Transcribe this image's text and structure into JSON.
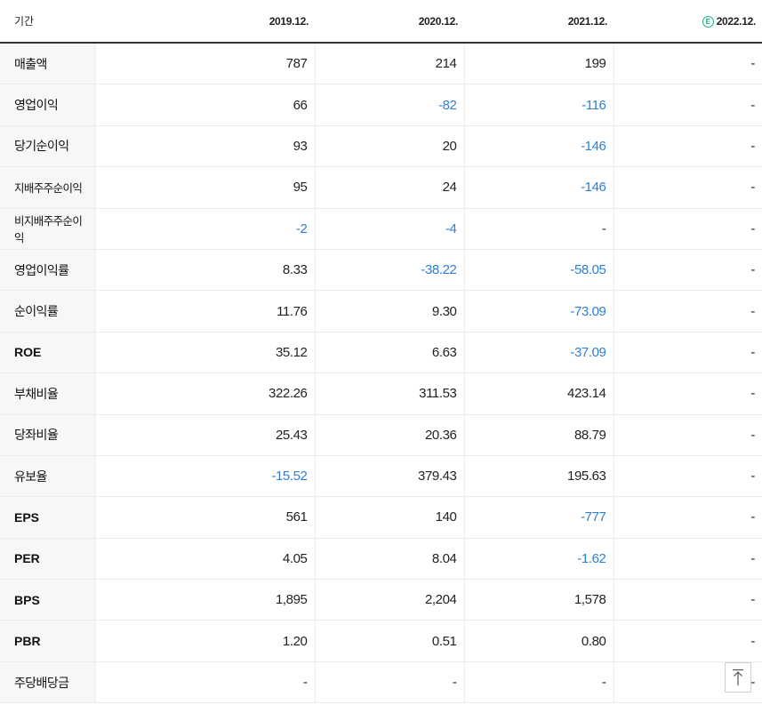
{
  "header": {
    "label": "기간",
    "estimate_badge": "E",
    "periods": [
      "2019.12.",
      "2020.12.",
      "2021.12.",
      "2022.12."
    ]
  },
  "rows": [
    {
      "label": "매출액",
      "values": [
        "787",
        "214",
        "199",
        "-"
      ]
    },
    {
      "label": "영업이익",
      "values": [
        "66",
        "-82",
        "-116",
        "-"
      ]
    },
    {
      "label": "당기순이익",
      "values": [
        "93",
        "20",
        "-146",
        "-"
      ]
    },
    {
      "label": "지배주주순이익",
      "values": [
        "95",
        "24",
        "-146",
        "-"
      ]
    },
    {
      "label": "비지배주주순이익",
      "values": [
        "-2",
        "-4",
        "-",
        "-"
      ]
    },
    {
      "label": "영업이익률",
      "values": [
        "8.33",
        "-38.22",
        "-58.05",
        "-"
      ]
    },
    {
      "label": "순이익률",
      "values": [
        "11.76",
        "9.30",
        "-73.09",
        "-"
      ]
    },
    {
      "label": "ROE",
      "values": [
        "35.12",
        "6.63",
        "-37.09",
        "-"
      ]
    },
    {
      "label": "부채비율",
      "values": [
        "322.26",
        "311.53",
        "423.14",
        "-"
      ]
    },
    {
      "label": "당좌비율",
      "values": [
        "25.43",
        "20.36",
        "88.79",
        "-"
      ]
    },
    {
      "label": "유보율",
      "values": [
        "-15.52",
        "379.43",
        "195.63",
        "-"
      ]
    },
    {
      "label": "EPS",
      "values": [
        "561",
        "140",
        "-777",
        "-"
      ]
    },
    {
      "label": "PER",
      "values": [
        "4.05",
        "8.04",
        "-1.62",
        "-"
      ]
    },
    {
      "label": "BPS",
      "values": [
        "1,895",
        "2,204",
        "1,578",
        "-"
      ]
    },
    {
      "label": "PBR",
      "values": [
        "1.20",
        "0.51",
        "0.80",
        "-"
      ]
    },
    {
      "label": "주당배당금",
      "values": [
        "-",
        "-",
        "-",
        "-"
      ]
    }
  ],
  "colors": {
    "negative": "#2e7fd6",
    "estimate_badge": "#19b27a"
  },
  "icons": {
    "scroll_top": "arrow-up-icon"
  }
}
